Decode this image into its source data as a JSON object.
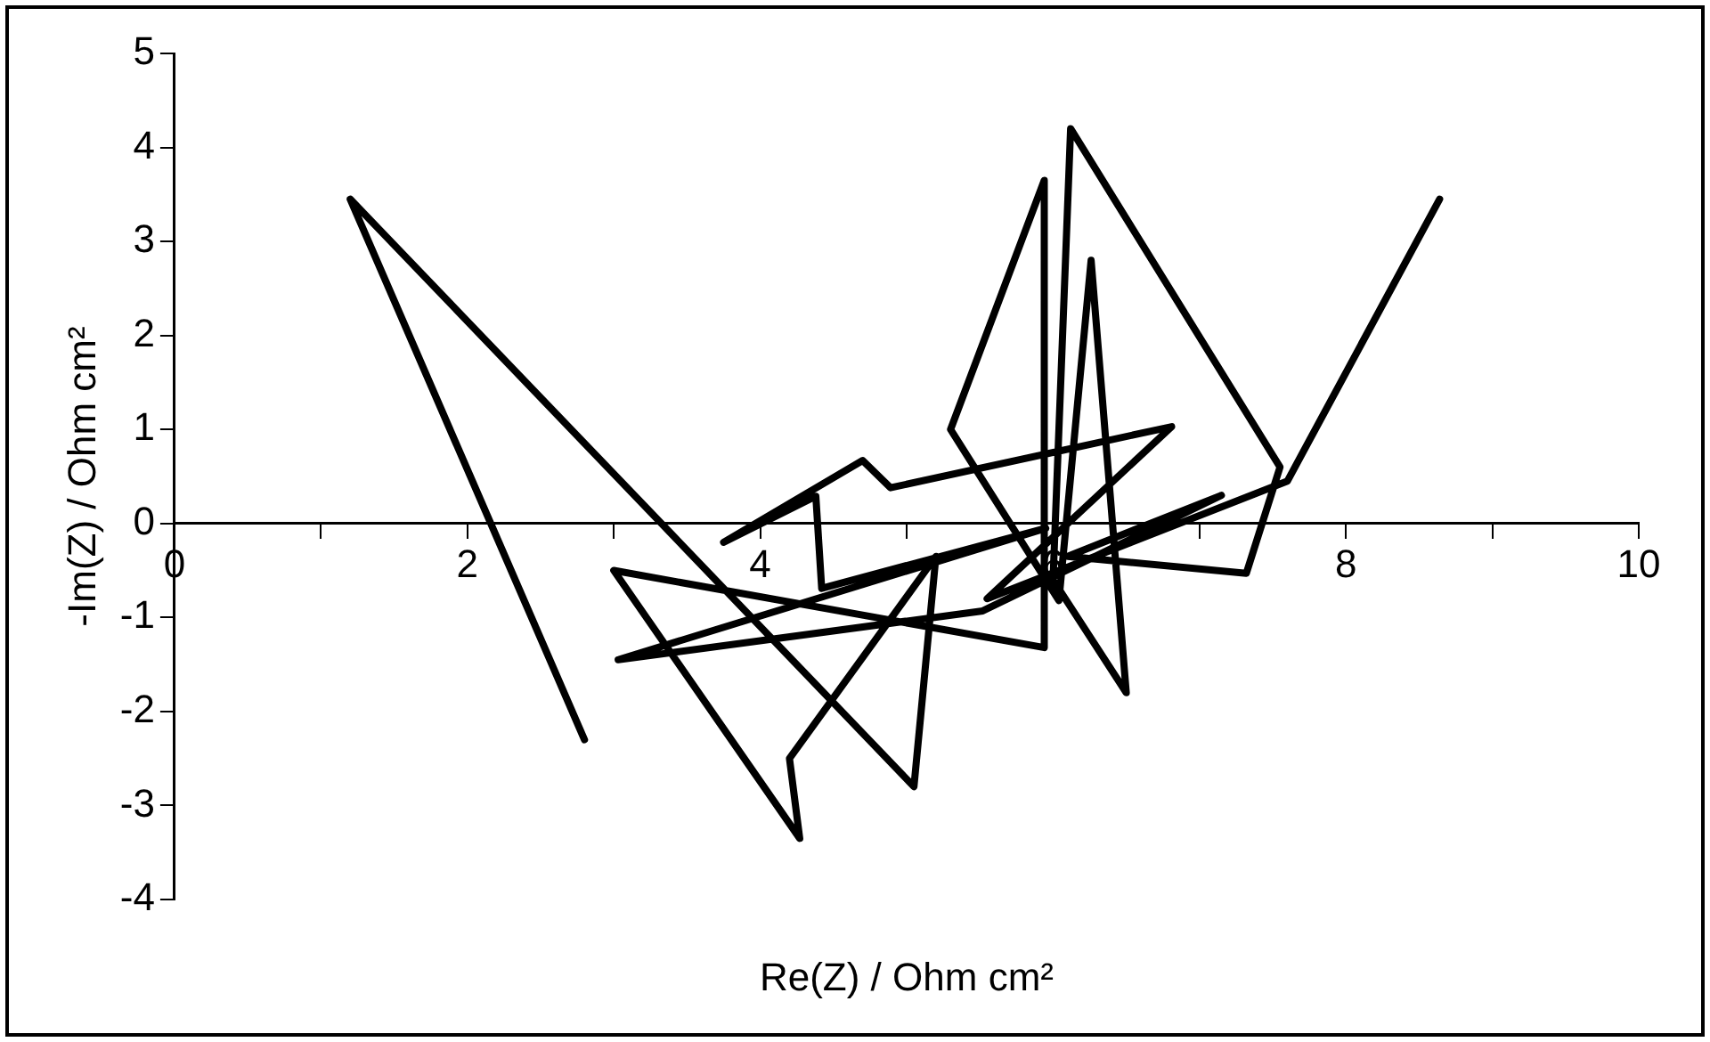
{
  "chart_data": {
    "type": "line",
    "xlabel": "Re(Z) / Ohm cm²",
    "ylabel": "-Im(Z) / Ohm cm²",
    "x": [
      2.8,
      1.2,
      5.05,
      5.2,
      4.2,
      4.27,
      3.0,
      5.94,
      5.94,
      5.3,
      6.04,
      6.26,
      6.5,
      6.0,
      6.12,
      7.55,
      7.32,
      6.1,
      7.15,
      5.52,
      3.03,
      5.95,
      4.42,
      4.38,
      3.75,
      4.7,
      4.89,
      6.81,
      5.55,
      7.6,
      8.64
    ],
    "series": [
      {
        "color": "#000000",
        "values": [
          -2.3,
          3.45,
          -2.8,
          -0.35,
          -2.5,
          -3.35,
          -0.5,
          -1.32,
          3.65,
          1.0,
          -0.82,
          2.8,
          -1.8,
          -0.6,
          4.2,
          0.6,
          -0.53,
          -0.35,
          0.3,
          -0.93,
          -1.45,
          -0.05,
          -0.69,
          0.29,
          -0.2,
          0.67,
          0.38,
          1.03,
          -0.8,
          0.45,
          3.45
        ]
      }
    ],
    "xlim": [
      0,
      10
    ],
    "ylim": [
      -4,
      5
    ],
    "xticks": [
      0,
      {
        "value": 1,
        "label": null
      },
      2,
      {
        "value": 3,
        "label": null
      },
      4,
      {
        "value": 5,
        "label": null
      },
      6,
      {
        "value": 7,
        "label": null
      },
      8,
      {
        "value": 9,
        "label": null
      },
      10
    ],
    "yticks": [
      -4,
      -3,
      -2,
      -1,
      0,
      1,
      2,
      3,
      4,
      5
    ],
    "grid": false,
    "legend": false,
    "marker": "none",
    "line_style": "solid"
  }
}
